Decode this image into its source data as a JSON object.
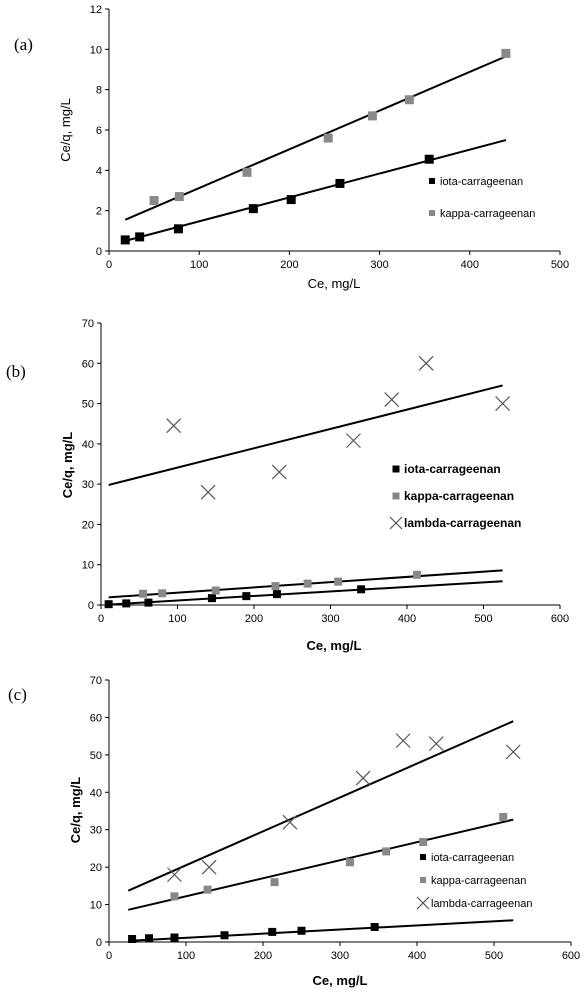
{
  "chart_data": [
    {
      "panel_label": "(a)",
      "type": "scatter",
      "xlabel": "Ce, mg/L",
      "ylabel": "Ce/q, mg/L",
      "xlim": [
        0,
        500
      ],
      "ylim": [
        0,
        12
      ],
      "xticks": [
        0,
        100,
        200,
        300,
        400,
        500
      ],
      "yticks": [
        0,
        2,
        4,
        6,
        8,
        10,
        12
      ],
      "grid": false,
      "legend_position": "right",
      "series": [
        {
          "name": "iota-carrageenan",
          "marker": "square",
          "color": "#000000",
          "x": [
            18,
            34,
            77,
            160,
            202,
            256,
            355
          ],
          "y": [
            0.55,
            0.7,
            1.1,
            2.1,
            2.55,
            3.35,
            4.55
          ],
          "fit": {
            "x": [
              18,
              440
            ],
            "y": [
              0.5,
              5.5
            ]
          }
        },
        {
          "name": "kappa-carrageenan",
          "marker": "square",
          "color": "#888888",
          "x": [
            50,
            78,
            153,
            243,
            292,
            333,
            440
          ],
          "y": [
            2.5,
            2.7,
            3.9,
            5.6,
            6.7,
            7.5,
            9.8
          ],
          "fit": {
            "x": [
              18,
              440
            ],
            "y": [
              1.55,
              9.65
            ]
          }
        }
      ]
    },
    {
      "panel_label": "(b)",
      "type": "scatter",
      "xlabel": "Ce, mg/L",
      "ylabel": "Ce/q, mg/L",
      "xlim": [
        0,
        600
      ],
      "ylim": [
        0,
        70
      ],
      "xticks": [
        0,
        100,
        200,
        300,
        400,
        500,
        600
      ],
      "yticks": [
        0,
        10,
        20,
        30,
        40,
        50,
        60,
        70
      ],
      "grid": false,
      "legend_position": "right",
      "series": [
        {
          "name": "iota-carrageenan",
          "marker": "square",
          "color": "#000000",
          "x": [
            10,
            33,
            62,
            145,
            190,
            230,
            340
          ],
          "y": [
            0.2,
            0.4,
            0.6,
            1.7,
            2.2,
            2.7,
            3.9
          ],
          "fit": {
            "x": [
              10,
              525
            ],
            "y": [
              0.1,
              5.9
            ]
          }
        },
        {
          "name": "kappa-carrageenan",
          "marker": "square",
          "color": "#888888",
          "x": [
            55,
            80,
            150,
            228,
            270,
            310,
            413
          ],
          "y": [
            2.8,
            2.9,
            3.6,
            4.7,
            5.3,
            5.8,
            7.5
          ],
          "fit": {
            "x": [
              10,
              525
            ],
            "y": [
              1.9,
              8.6
            ]
          }
        },
        {
          "name": "lambda-carrageenan",
          "marker": "x",
          "color": "#555555",
          "x": [
            95,
            140,
            233,
            330,
            380,
            425,
            525
          ],
          "y": [
            44.5,
            28,
            33,
            40.8,
            51,
            60,
            50
          ],
          "fit": {
            "x": [
              10,
              525
            ],
            "y": [
              29.8,
              54.5
            ]
          }
        }
      ]
    },
    {
      "panel_label": "(c)",
      "type": "scatter",
      "xlabel": "Ce, mg/L",
      "ylabel": "Ce/q, mg/L",
      "xlim": [
        0,
        600
      ],
      "ylim": [
        0,
        70
      ],
      "xticks": [
        0,
        100,
        200,
        300,
        400,
        500,
        600
      ],
      "yticks": [
        0,
        10,
        20,
        30,
        40,
        50,
        60,
        70
      ],
      "grid": false,
      "legend_position": "right",
      "series": [
        {
          "name": "iota-carrageenan",
          "marker": "square",
          "color": "#000000",
          "x": [
            30,
            52,
            85,
            150,
            212,
            250,
            345
          ],
          "y": [
            0.8,
            1.0,
            1.2,
            1.8,
            2.7,
            3.0,
            4.0
          ],
          "fit": {
            "x": [
              25,
              525
            ],
            "y": [
              0.3,
              5.8
            ]
          }
        },
        {
          "name": "kappa-carrageenan",
          "marker": "square",
          "color": "#888888",
          "x": [
            85,
            128,
            215,
            313,
            360,
            408,
            512
          ],
          "y": [
            12.2,
            14,
            16,
            21.3,
            24.2,
            26.7,
            33.4
          ],
          "fit": {
            "x": [
              25,
              525
            ],
            "y": [
              8.6,
              32.7
            ]
          }
        },
        {
          "name": "lambda-carrageenan",
          "marker": "x",
          "color": "#555555",
          "x": [
            85,
            130,
            235,
            330,
            382,
            425,
            525
          ],
          "y": [
            18,
            20,
            32,
            43.8,
            53.8,
            53,
            50.8
          ],
          "fit": {
            "x": [
              25,
              525
            ],
            "y": [
              13.7,
              59
            ]
          }
        }
      ]
    }
  ]
}
